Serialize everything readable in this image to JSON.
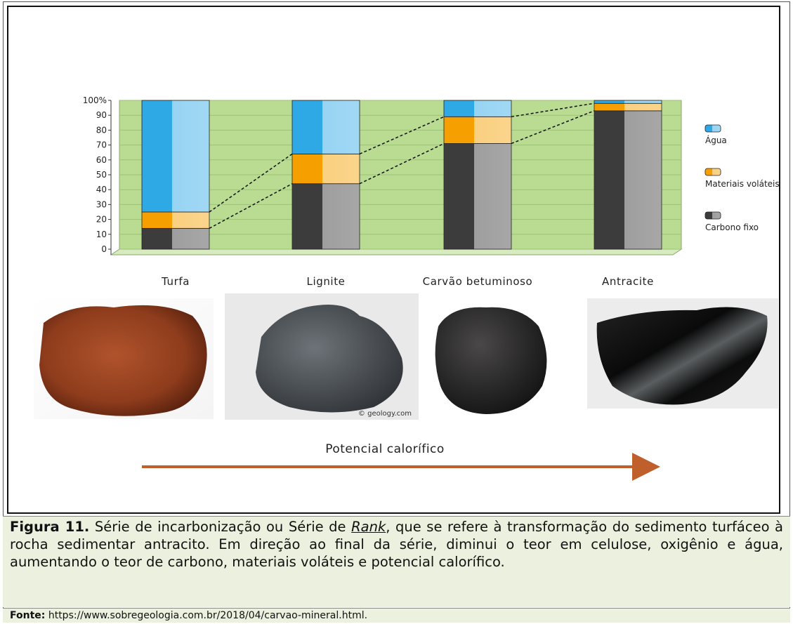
{
  "chart_data": {
    "type": "bar",
    "stacked": true,
    "categories": [
      "Turfa",
      "Lignite",
      "Carvão betuminoso",
      "Antracite"
    ],
    "series": [
      {
        "name": "Carbono fixo",
        "color": "#3c3c3c",
        "values": [
          14,
          44,
          71,
          93
        ]
      },
      {
        "name": "Materiais voláteis",
        "color": "#f5a000",
        "values": [
          11,
          20,
          18,
          5
        ]
      },
      {
        "name": "Água",
        "color": "#2fa8e6",
        "values": [
          75,
          36,
          11,
          2
        ]
      }
    ],
    "ylim": [
      0,
      100
    ],
    "yticks": [
      0,
      10,
      20,
      30,
      40,
      50,
      60,
      70,
      80,
      90,
      {
        "value": 100,
        "label": "100%"
      }
    ],
    "plot_color": "#b9dc92",
    "arrow_label": "Potencial calorífico",
    "photo_credit": "© geology.com"
  },
  "caption": {
    "label": "Figura 11.",
    "text_before": "Série de incarbonização ou Série de ",
    "emphasis": "Rank",
    "text_after": ", que se refere à transformação do sedimento turfáceo à rocha sedimentar antracito. Em direção ao final da série, diminui o teor em celulose, oxigênio e água, aumentando o teor de carbono, materiais voláteis e potencial calorífico."
  },
  "source": {
    "label": "Fonte:",
    "url": "https://www.sobregeologia.com.br/2018/04/carvao-mineral.html."
  }
}
